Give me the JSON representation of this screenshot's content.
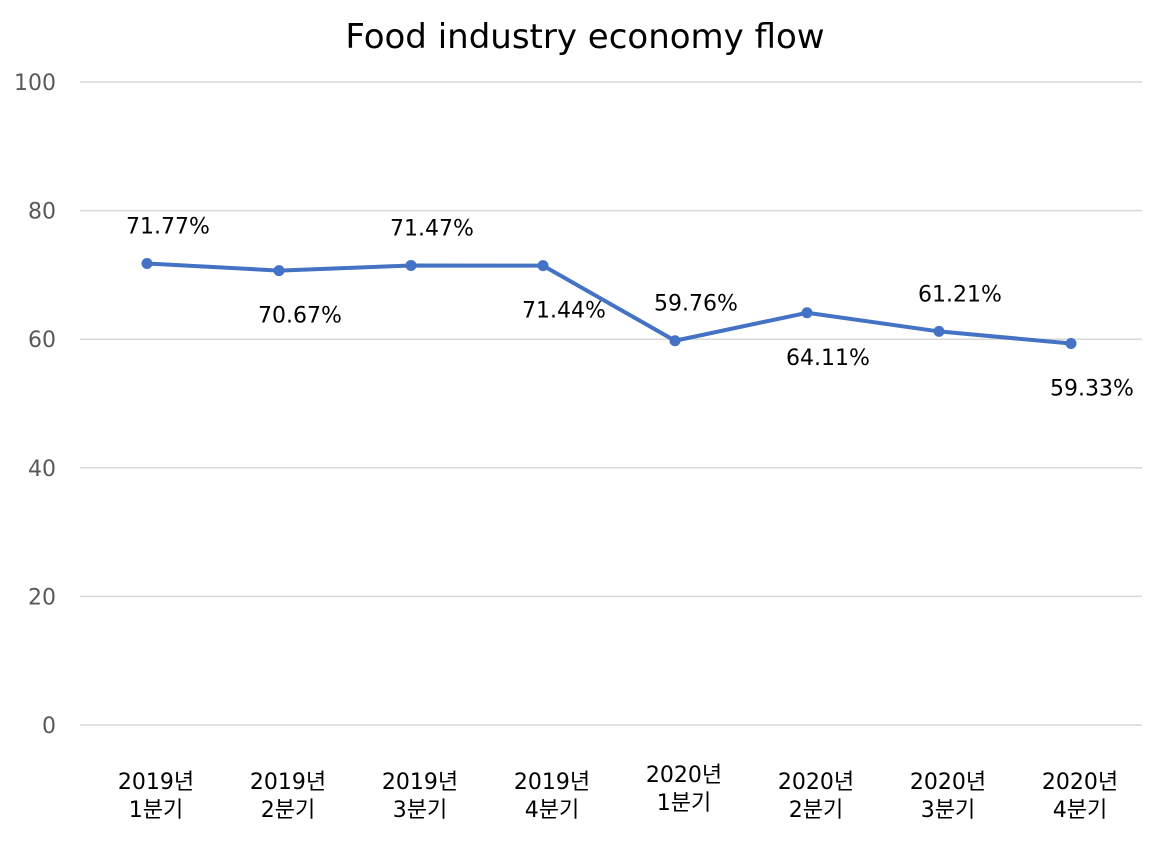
{
  "chart_data": {
    "type": "line",
    "title": "Food industry economy flow",
    "xlabel": "",
    "ylabel": "",
    "ylim": [
      0,
      100
    ],
    "yticks": [
      "0",
      "20",
      "40",
      "60",
      "80",
      "100"
    ],
    "grid": true,
    "legend": "none",
    "categories": [
      [
        "2019년",
        "1분기"
      ],
      [
        "2019년",
        "2분기"
      ],
      [
        "2019년",
        "3분기"
      ],
      [
        "2019년",
        "4분기"
      ],
      [
        "2020년",
        "1분기"
      ],
      [
        "2020년",
        "2분기"
      ],
      [
        "2020년",
        "3분기"
      ],
      [
        "2020년",
        "4분기"
      ]
    ],
    "series": [
      {
        "color": "#4472c4",
        "values": [
          71.77,
          70.67,
          71.47,
          71.44,
          59.76,
          64.11,
          61.21,
          59.33
        ],
        "labels": [
          "71.77%",
          "70.67%",
          "71.47%",
          "71.44%",
          "59.76%",
          "64.11%",
          "61.21%",
          "59.33%"
        ]
      }
    ],
    "grid_color": "#d9d9d9",
    "tick_color": "#595959"
  }
}
